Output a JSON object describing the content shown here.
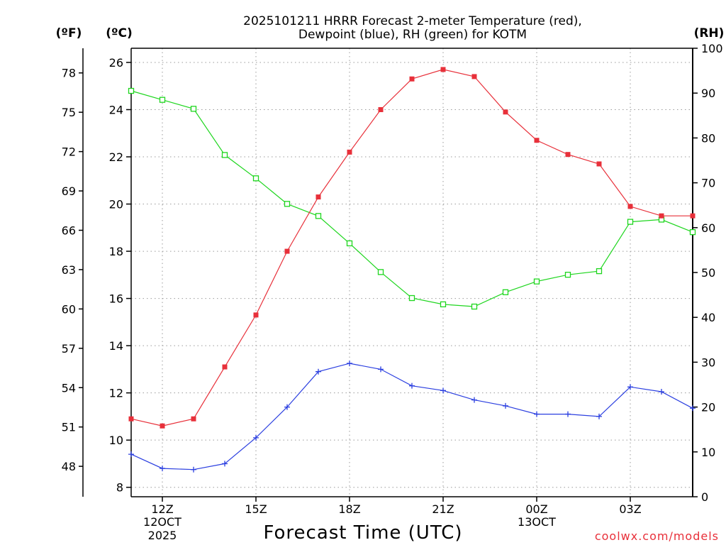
{
  "chart_data": {
    "type": "line",
    "title_line1": "2025101211 HRRR Forecast 2-meter Temperature (red),",
    "title_line2": "Dewpoint (blue), RH (green) for KOTM",
    "xlabel": "Forecast Time (UTC)",
    "credit": "coolwx.com/models",
    "units": {
      "fahrenheit": "(ºF)",
      "celsius": "(ºC)",
      "rh": "(RH)"
    },
    "x_hours": [
      11,
      12,
      13,
      14,
      15,
      16,
      17,
      18,
      19,
      20,
      21,
      22,
      23,
      24,
      25,
      26,
      27,
      28,
      29
    ],
    "xlim": [
      11,
      29
    ],
    "x_ticks": [
      {
        "hour": 12,
        "label": "12Z",
        "sub1": "12OCT",
        "sub2": "2025"
      },
      {
        "hour": 15,
        "label": "15Z",
        "sub1": "",
        "sub2": ""
      },
      {
        "hour": 18,
        "label": "18Z",
        "sub1": "",
        "sub2": ""
      },
      {
        "hour": 21,
        "label": "21Z",
        "sub1": "",
        "sub2": ""
      },
      {
        "hour": 24,
        "label": "00Z",
        "sub1": "13OCT",
        "sub2": ""
      },
      {
        "hour": 27,
        "label": "03Z",
        "sub1": "",
        "sub2": ""
      }
    ],
    "ylim_c": [
      7.6,
      26.6
    ],
    "y_ticks_c": [
      8,
      10,
      12,
      14,
      16,
      18,
      20,
      22,
      24,
      26
    ],
    "y_ticks_f": [
      48,
      51,
      54,
      57,
      60,
      63,
      66,
      69,
      72,
      75,
      78
    ],
    "ylim_rh": [
      0,
      100
    ],
    "y_ticks_rh": [
      0,
      10,
      20,
      30,
      40,
      50,
      60,
      70,
      80,
      90,
      100
    ],
    "colors": {
      "temperature": "#e8303a",
      "dewpoint": "#2b3fe0",
      "rh": "#1ed61e"
    },
    "series": [
      {
        "name": "Temperature",
        "unit": "C",
        "values": [
          10.9,
          10.6,
          10.9,
          13.1,
          15.3,
          18.0,
          20.3,
          22.2,
          24.0,
          25.3,
          25.7,
          25.4,
          23.9,
          22.7,
          22.1,
          21.7,
          19.9,
          19.5,
          19.5
        ]
      },
      {
        "name": "Dewpoint",
        "unit": "C",
        "values": [
          9.4,
          8.8,
          8.75,
          9.0,
          10.1,
          11.4,
          12.9,
          13.25,
          13.0,
          12.3,
          12.1,
          11.7,
          11.45,
          11.1,
          11.1,
          11.0,
          12.25,
          12.05,
          11.35
        ]
      },
      {
        "name": "RH",
        "unit": "%",
        "values": [
          90.5,
          88.5,
          86.5,
          76.2,
          71.0,
          65.3,
          62.6,
          56.5,
          50.1,
          44.3,
          42.9,
          42.4,
          45.6,
          48.0,
          49.5,
          50.3,
          61.3,
          61.8,
          59.0
        ]
      }
    ]
  }
}
